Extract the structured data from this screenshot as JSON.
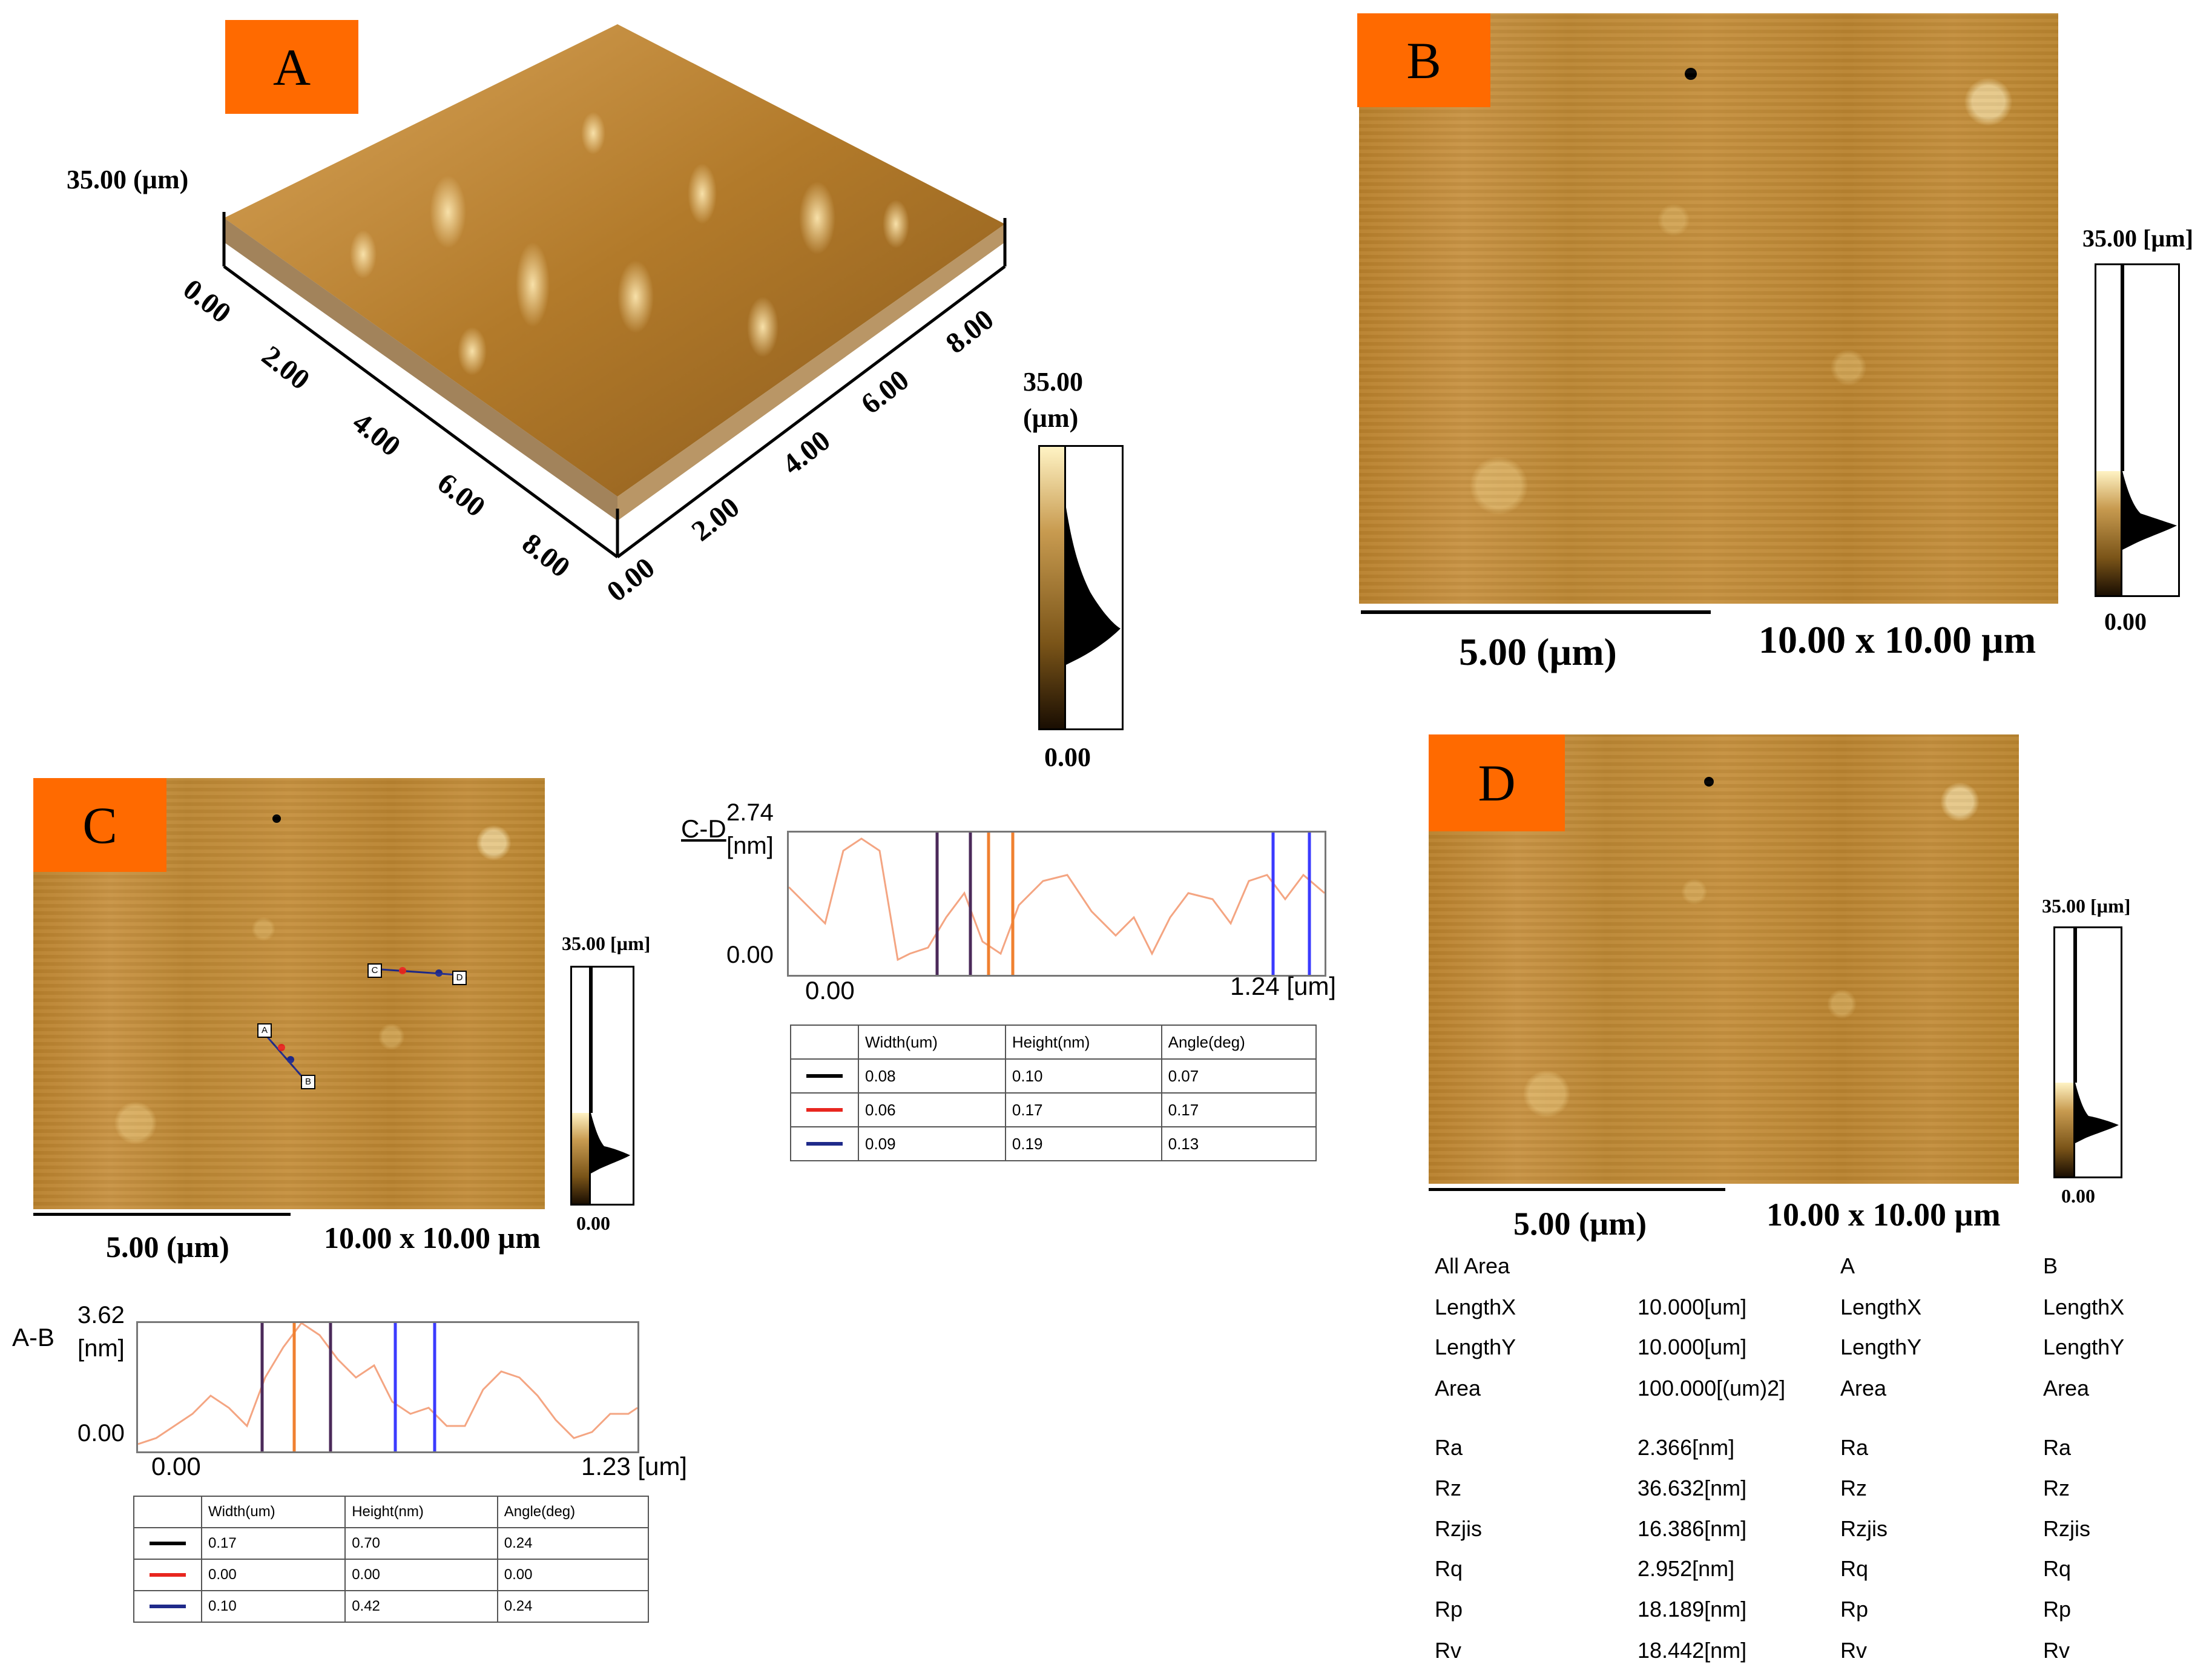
{
  "panel_a": {
    "label": "A",
    "z_axis_label": "35.00 (µm)",
    "x_ticks": [
      "0.00",
      "2.00",
      "4.00",
      "6.00",
      "8.00"
    ],
    "y_ticks": [
      "0.00",
      "2.00",
      "4.00",
      "6.00",
      "8.00"
    ],
    "colorbar_max": "35.00",
    "colorbar_unit": "(µm)",
    "colorbar_min": "0.00"
  },
  "panel_b": {
    "label": "B",
    "scale_label": "5.00 (µm)",
    "dimensions": "10.00 x 10.00 µm",
    "colorbar_max": "35.00 [µm]",
    "colorbar_min": "0.00"
  },
  "panel_c": {
    "label": "C",
    "scale_label": "5.00 (µm)",
    "dimensions": "10.00 x 10.00 µm",
    "colorbar_max": "35.00 [µm]",
    "colorbar_min": "0.00",
    "markers": [
      "C",
      "D",
      "A",
      "B"
    ]
  },
  "panel_d": {
    "label": "D",
    "scale_label": "5.00 (µm)",
    "dimensions": "10.00 x 10.00 µm",
    "colorbar_max": "35.00 [µm]",
    "colorbar_min": "0.00"
  },
  "profile_cd": {
    "name": "C-D",
    "y_max": "2.74",
    "y_unit": "[nm]",
    "y_min": "0.00",
    "x_min": "0.00",
    "x_max": "1.24 [um]",
    "table": {
      "headers": [
        "Width(um)",
        "Height(nm)",
        "Angle(deg)"
      ],
      "rows": [
        {
          "color": "#000000",
          "values": [
            "0.08",
            "0.10",
            "0.07"
          ]
        },
        {
          "color": "#e8261f",
          "values": [
            "0.06",
            "0.17",
            "0.17"
          ]
        },
        {
          "color": "#1f2a8a",
          "values": [
            "0.09",
            "0.19",
            "0.13"
          ]
        }
      ]
    }
  },
  "profile_ab": {
    "name": "A-B",
    "y_max": "3.62",
    "y_unit": "[nm]",
    "y_min": "0.00",
    "x_min": "0.00",
    "x_max": "1.23 [um]",
    "table": {
      "headers": [
        "Width(um)",
        "Height(nm)",
        "Angle(deg)"
      ],
      "rows": [
        {
          "color": "#000000",
          "values": [
            "0.17",
            "0.70",
            "0.24"
          ]
        },
        {
          "color": "#e8261f",
          "values": [
            "0.00",
            "0.00",
            "0.00"
          ]
        },
        {
          "color": "#1f2a8a",
          "values": [
            "0.10",
            "0.42",
            "0.24"
          ]
        }
      ]
    }
  },
  "roughness": {
    "columns": [
      "All Area",
      "",
      "A",
      "B"
    ],
    "rows": [
      [
        "LengthX",
        "10.000[um]",
        "LengthX",
        "LengthX"
      ],
      [
        "LengthY",
        "10.000[um]",
        "LengthY",
        "LengthY"
      ],
      [
        "Area",
        "100.000[(um)2]",
        "Area",
        "Area"
      ],
      [
        "Ra",
        "2.366[nm]",
        "Ra",
        "Ra"
      ],
      [
        "Rz",
        "36.632[nm]",
        "Rz",
        "Rz"
      ],
      [
        "Rzjis",
        "16.386[nm]",
        "Rzjis",
        "Rzjis"
      ],
      [
        "Rq",
        "2.952[nm]",
        "Rq",
        "Rq"
      ],
      [
        "Rp",
        "18.189[nm]",
        "Rp",
        "Rp"
      ],
      [
        "Rv",
        "18.442[nm]",
        "Rv",
        "Rv"
      ]
    ]
  },
  "colors": {
    "tag_orange": "#ff6a00",
    "afm_brown": "#c08a3a",
    "profile_orange": "#f4a582"
  }
}
